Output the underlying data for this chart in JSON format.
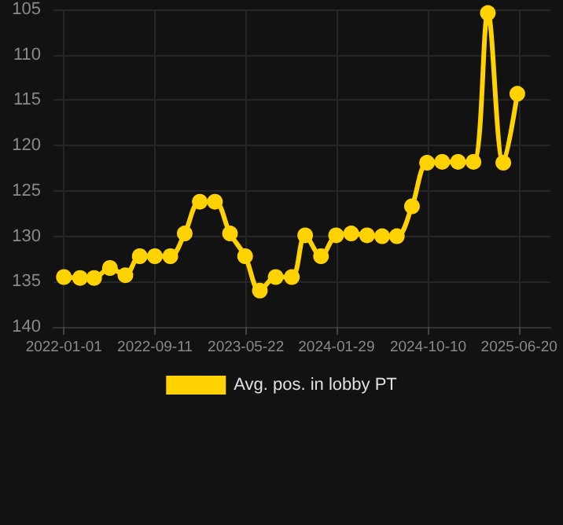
{
  "chart_data": {
    "type": "line",
    "x": [
      "2022-01-01",
      "2022-02-15",
      "2022-03-26",
      "2022-05-09",
      "2022-06-21",
      "2022-07-31",
      "2022-09-11",
      "2022-10-24",
      "2022-12-03",
      "2023-01-14",
      "2023-02-25",
      "2023-04-08",
      "2023-05-20",
      "2023-06-30",
      "2023-08-13",
      "2023-09-27",
      "2023-11-03",
      "2023-12-17",
      "2024-01-28",
      "2024-03-10",
      "2024-04-23",
      "2024-06-04",
      "2024-07-15",
      "2024-08-26",
      "2024-10-07",
      "2024-11-18",
      "2025-01-01",
      "2025-02-13",
      "2025-03-25",
      "2025-05-07",
      "2025-06-15"
    ],
    "series": [
      {
        "name": "Avg. pos. in lobby PT",
        "color": "#ffd200",
        "values": [
          134.5,
          134.6,
          134.6,
          133.5,
          134.3,
          132.2,
          132.2,
          132.2,
          129.7,
          126.2,
          126.2,
          129.7,
          132.2,
          136.0,
          134.5,
          134.5,
          129.9,
          132.2,
          129.9,
          129.7,
          129.9,
          130.0,
          130.0,
          126.7,
          121.9,
          121.8,
          121.8,
          121.8,
          105.4,
          121.9,
          114.3
        ]
      }
    ],
    "xlim": [
      "2021-12-03",
      "2025-09-15"
    ],
    "xticks": [
      "2022-01-01",
      "2022-09-11",
      "2023-05-22",
      "2024-01-29",
      "2024-10-10",
      "2025-06-20"
    ],
    "ylim": [
      140,
      105
    ],
    "yticks": [
      105,
      110,
      115,
      120,
      125,
      130,
      135,
      140
    ],
    "grid": true,
    "legend": "bottom",
    "marker": "circle",
    "line_style": "solid"
  }
}
